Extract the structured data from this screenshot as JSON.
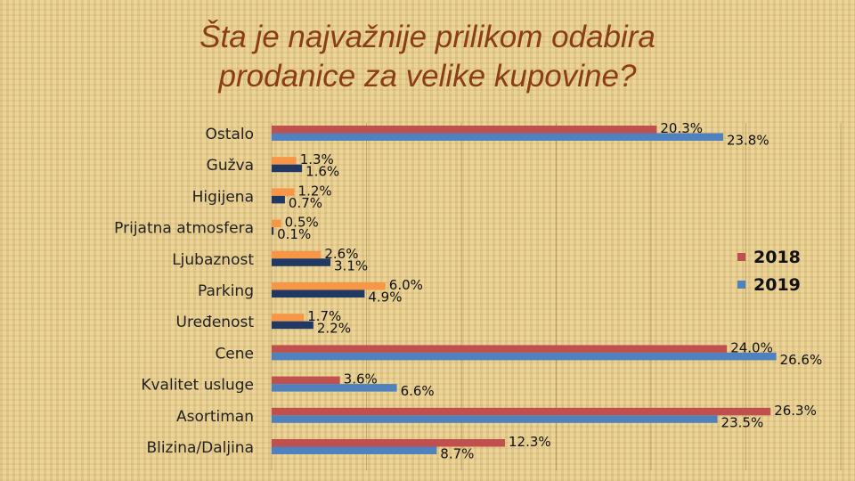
{
  "title_line1": "Šta je najvažnije prilikom odabira",
  "title_line2": "prodanice za velike kupovine?",
  "colors": {
    "title": "#8a3d17",
    "series_2018": "#c0504d",
    "series_2019": "#4f81bd",
    "small_2018": "#f79646",
    "small_2019": "#1f3864"
  },
  "chart_data": {
    "type": "bar",
    "orientation": "horizontal",
    "categories": [
      "Ostalo",
      "Gužva",
      "Higijena",
      "Prijatna atmosfera",
      "Ljubaznost",
      "Parking",
      "Uređenost",
      "Cene",
      "Kvalitet usluge",
      "Asortiman",
      "Blizina/Daljina"
    ],
    "series": [
      {
        "name": "2018",
        "values": [
          20.3,
          1.3,
          1.2,
          0.5,
          2.6,
          6.0,
          1.7,
          24.0,
          3.6,
          26.3,
          12.3
        ]
      },
      {
        "name": "2019",
        "values": [
          23.8,
          1.6,
          0.7,
          0.1,
          3.1,
          4.9,
          2.2,
          26.6,
          6.6,
          23.5,
          8.7
        ]
      }
    ],
    "value_labels_2018": [
      "20.3%",
      "1.3%",
      "1.2%",
      "0.5%",
      "2.6%",
      "6.0%",
      "1.7%",
      "24.0%",
      "3.6%",
      "26.3%",
      "12.3%"
    ],
    "value_labels_2019": [
      "23.8%",
      "1.6%",
      "0.7%",
      "0.1%",
      "3.1%",
      "4.9%",
      "2.2%",
      "26.6%",
      "6.6%",
      "23.5%",
      "8.7%"
    ],
    "xlim": [
      0,
      30
    ],
    "unit": "%",
    "legend": [
      "2018",
      "2019"
    ],
    "legend_position": "right",
    "grid": true
  }
}
